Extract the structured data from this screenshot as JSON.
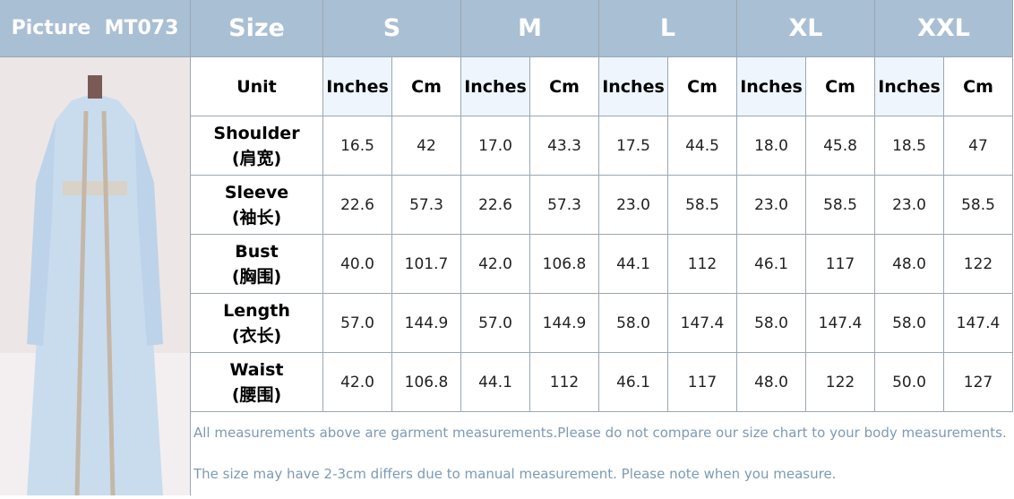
{
  "header": {
    "picture_label": "Picture",
    "model": "MT073",
    "size_label": "Size",
    "sizes": [
      "S",
      "M",
      "L",
      "XL",
      "XXL"
    ]
  },
  "unit_row": {
    "label": "Unit",
    "units": [
      "Inches",
      "Cm"
    ]
  },
  "rows": [
    {
      "name": "Shoulder",
      "name_cn": "(肩宽)",
      "values": [
        "16.5",
        "42",
        "17.0",
        "43.3",
        "17.5",
        "44.5",
        "18.0",
        "45.8",
        "18.5",
        "47"
      ]
    },
    {
      "name": "Sleeve",
      "name_cn": "(袖长)",
      "values": [
        "22.6",
        "57.3",
        "22.6",
        "57.3",
        "23.0",
        "58.5",
        "23.0",
        "58.5",
        "23.0",
        "58.5"
      ]
    },
    {
      "name": "Bust",
      "name_cn": "(胸围)",
      "values": [
        "40.0",
        "101.7",
        "42.0",
        "106.8",
        "44.1",
        "112",
        "46.1",
        "117",
        "48.0",
        "122"
      ]
    },
    {
      "name": "Length",
      "name_cn": "(衣长)",
      "values": [
        "57.0",
        "144.9",
        "57.0",
        "144.9",
        "58.0",
        "147.4",
        "58.0",
        "147.4",
        "58.0",
        "147.4"
      ]
    },
    {
      "name": "Waist",
      "name_cn": "(腰围)",
      "values": [
        "42.0",
        "106.8",
        "44.1",
        "112",
        "46.1",
        "117",
        "48.0",
        "122",
        "50.0",
        "127"
      ]
    }
  ],
  "notes": [
    "All measurements above are garment measurements.Please do not compare our size chart to your body measurements.",
    "The size may have 2-3cm differs due to manual measurement. Please note when you measure."
  ]
}
